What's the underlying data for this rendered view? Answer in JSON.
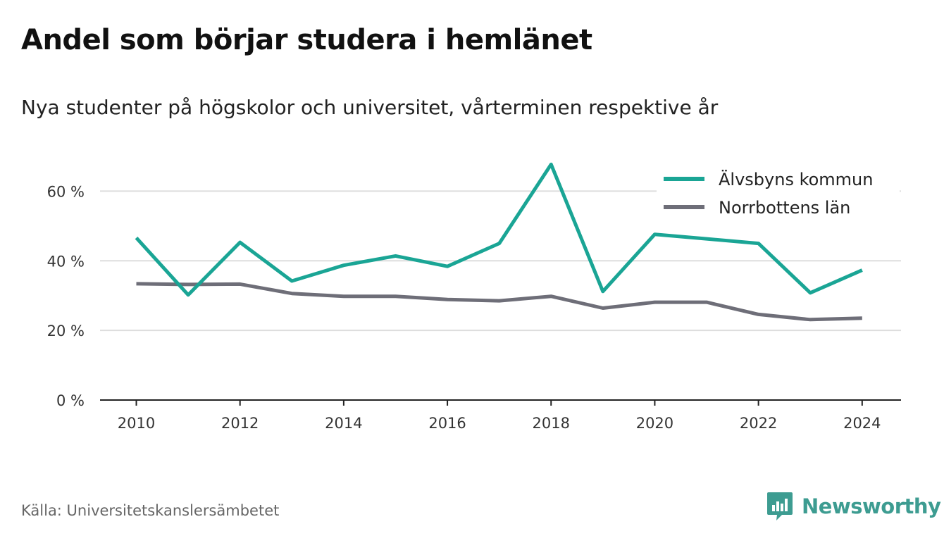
{
  "title": "Andel som börjar studera i hemlänet",
  "subtitle": "Nya studenter på högskolor och universitet, vårterminen respektive år",
  "source": "Källa: Universitetskanslersämbetet",
  "brand": {
    "name": "Newsworthy",
    "color": "#3d9c91",
    "icon": "newsworthy-chart-icon"
  },
  "chart_data": {
    "type": "line",
    "x": [
      2010,
      2011,
      2012,
      2013,
      2014,
      2015,
      2016,
      2017,
      2018,
      2019,
      2020,
      2021,
      2022,
      2023,
      2024
    ],
    "xticks": [
      "2010",
      "2012",
      "2014",
      "2016",
      "2018",
      "2020",
      "2022",
      "2024"
    ],
    "xlim": [
      2009.3,
      2024.75
    ],
    "ylim": [
      0,
      70
    ],
    "yticks": [
      0,
      20,
      40,
      60
    ],
    "ytick_labels": [
      "0 %",
      "20 %",
      "40 %",
      "60 %"
    ],
    "grid": true,
    "legend_position": "top-right",
    "series": [
      {
        "name": "Älvsbyns kommun",
        "color": "#1aa595",
        "values": [
          46.6,
          30.2,
          45.3,
          34.2,
          38.7,
          41.4,
          38.4,
          45.0,
          67.7,
          31.2,
          47.6,
          46.3,
          45.0,
          30.8,
          37.3
        ]
      },
      {
        "name": "Norrbottens län",
        "color": "#6e6e78",
        "values": [
          33.4,
          33.2,
          33.3,
          30.6,
          29.8,
          29.8,
          28.9,
          28.5,
          29.8,
          26.4,
          28.1,
          28.1,
          24.6,
          23.1,
          23.5
        ]
      }
    ]
  }
}
